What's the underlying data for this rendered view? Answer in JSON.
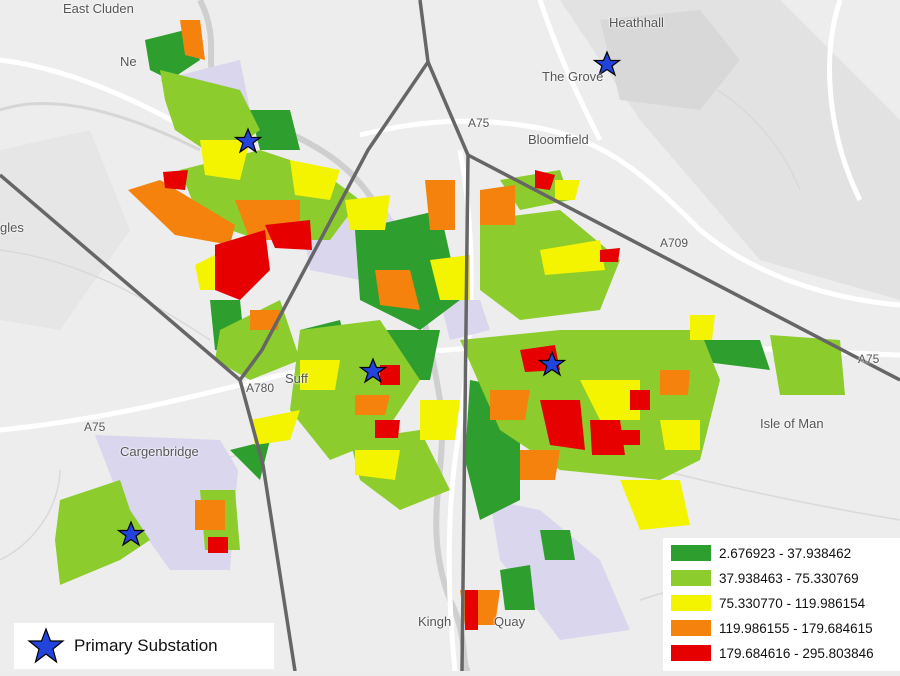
{
  "place_labels": [
    "East Cluden",
    "Heathhall",
    "The Grove",
    "Bloomfield",
    "Ne",
    "gles",
    "Suff",
    "A780",
    "A75",
    "A75",
    "A75",
    "A709",
    "Cargenbridge",
    "Isle of Man",
    "Kingh",
    "Quay"
  ],
  "legend": {
    "classes": [
      {
        "label": "2.676923 - 37.938462",
        "color": "#2e9e2e"
      },
      {
        "label": "37.938463 - 75.330769",
        "color": "#8ccc2c"
      },
      {
        "label": "75.330770 - 119.986154",
        "color": "#f4f400"
      },
      {
        "label": "119.986155 - 179.684615",
        "color": "#f5820d"
      },
      {
        "label": "179.684616 - 295.803846",
        "color": "#e60000"
      }
    ]
  },
  "symbol_legend": {
    "label": "Primary Substation",
    "icon": "star-icon",
    "color": "#2244dd"
  }
}
